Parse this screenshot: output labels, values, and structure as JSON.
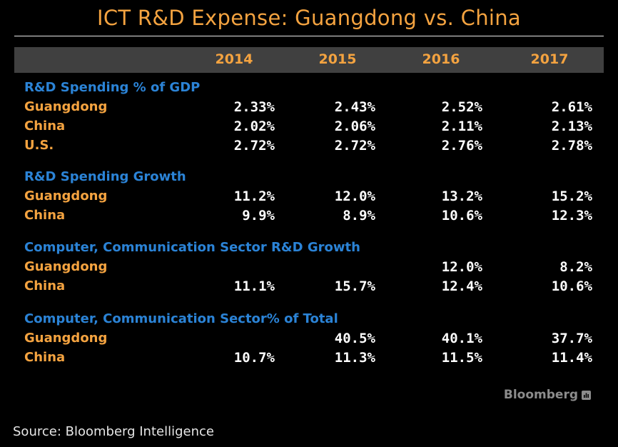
{
  "chart_data": {
    "type": "table",
    "title": "ICT R&D Expense: Guangdong vs. China",
    "columns": [
      "2014",
      "2015",
      "2016",
      "2017"
    ],
    "sections": [
      {
        "title": "R&D Spending % of GDP",
        "rows": [
          {
            "label": "Guangdong",
            "values": [
              "2.33%",
              "2.43%",
              "2.52%",
              "2.61%"
            ]
          },
          {
            "label": "China",
            "values": [
              "2.02%",
              "2.06%",
              "2.11%",
              "2.13%"
            ]
          },
          {
            "label": "U.S.",
            "values": [
              "2.72%",
              "2.72%",
              "2.76%",
              "2.78%"
            ]
          }
        ]
      },
      {
        "title": "R&D Spending Growth",
        "rows": [
          {
            "label": "Guangdong",
            "values": [
              "11.2%",
              "12.0%",
              "13.2%",
              "15.2%"
            ]
          },
          {
            "label": "China",
            "values": [
              "9.9%",
              "8.9%",
              "10.6%",
              "12.3%"
            ]
          }
        ]
      },
      {
        "title": "Computer, Communication Sector R&D Growth",
        "rows": [
          {
            "label": "Guangdong",
            "values": [
              "",
              "",
              "12.0%",
              "8.2%"
            ]
          },
          {
            "label": "China",
            "values": [
              "11.1%",
              "15.7%",
              "12.4%",
              "10.6%"
            ]
          }
        ]
      },
      {
        "title": "Computer, Communication Sector% of Total",
        "rows": [
          {
            "label": "Guangdong",
            "values": [
              "",
              "40.5%",
              "40.1%",
              "37.7%"
            ]
          },
          {
            "label": "China",
            "values": [
              "10.7%",
              "11.3%",
              "11.5%",
              "11.4%"
            ]
          }
        ]
      }
    ],
    "colors": {
      "title": "#f4a340",
      "section_title": "#2b83d6",
      "row_label": "#f4a340",
      "value": "#ffffff",
      "header_bar": "#404040",
      "background": "#000000"
    }
  },
  "branding": {
    "name": "Bloomberg",
    "icon": "bloomberg-terminal-icon"
  },
  "source": "Source: Bloomberg Intelligence"
}
